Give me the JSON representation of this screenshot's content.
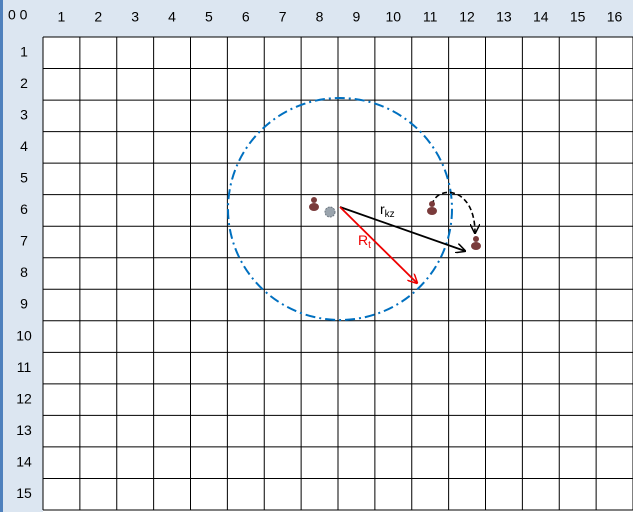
{
  "corner": "0 0",
  "columns": [
    "1",
    "2",
    "3",
    "4",
    "5",
    "6",
    "7",
    "8",
    "9",
    "10",
    "11",
    "12",
    "13",
    "14",
    "15",
    "16"
  ],
  "rows": [
    "1",
    "2",
    "3",
    "4",
    "5",
    "6",
    "7",
    "8",
    "9",
    "10",
    "11",
    "12",
    "13",
    "14",
    "15"
  ],
  "labels": [
    {
      "text": "r",
      "sub": "kz"
    },
    {
      "text": "R",
      "sub": "t"
    }
  ]
}
